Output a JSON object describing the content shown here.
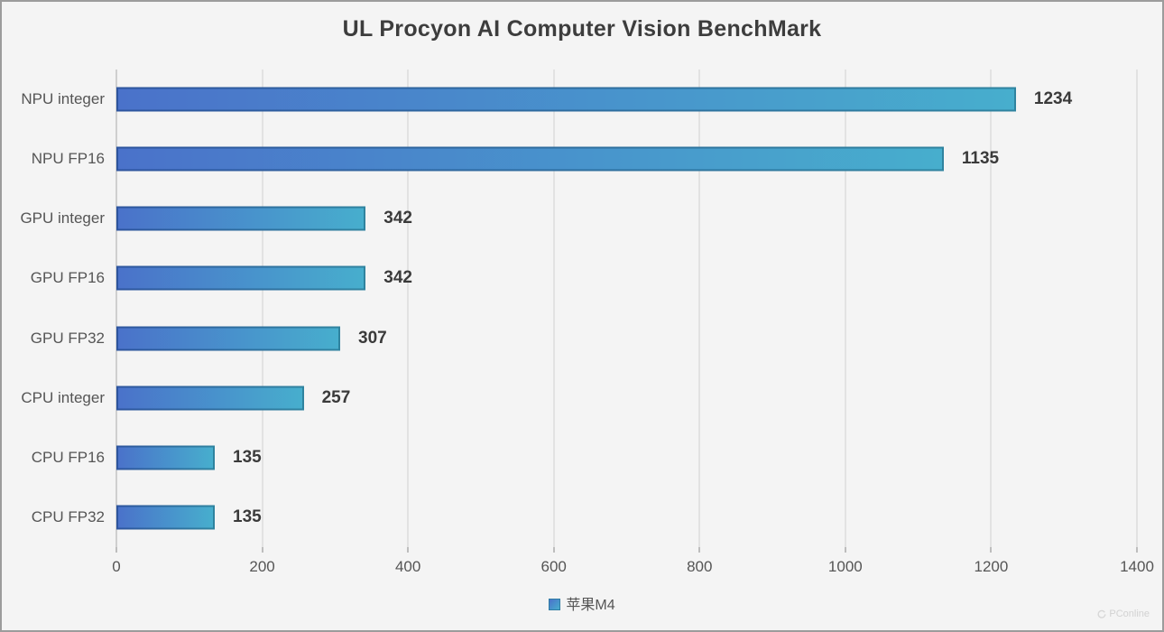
{
  "chart_data": {
    "type": "bar",
    "orientation": "horizontal",
    "title": "UL Procyon AI Computer Vision BenchMark",
    "categories": [
      "NPU integer",
      "NPU FP16",
      "GPU integer",
      "GPU FP16",
      "GPU FP32",
      "CPU integer",
      "CPU FP16",
      "CPU FP32"
    ],
    "series": [
      {
        "name": "苹果M4",
        "values": [
          1234,
          1135,
          342,
          342,
          307,
          257,
          135,
          135
        ]
      }
    ],
    "value_labels": [
      "1234",
      "1135",
      "342",
      "342",
      "307",
      "257",
      "135",
      "135"
    ],
    "xlabel": "",
    "ylabel": "",
    "xlim": [
      0,
      1400
    ],
    "x_ticks": [
      0,
      200,
      400,
      600,
      800,
      1000,
      1200,
      1400
    ],
    "grid": "vertical",
    "legend_position": "bottom-center",
    "colors": {
      "background": "#f4f4f4",
      "gridline": "#e2e2e2",
      "axis_line": "#cfcfcf",
      "bar_fill_start": "#4a72ca",
      "bar_fill_end": "#47aecd",
      "bar_border_start": "#2d549e",
      "bar_border_end": "#2f839f",
      "title_text": "#3d3d3d",
      "label_text": "#555555",
      "value_text": "#3a3a3a"
    }
  },
  "legend": {
    "label": "苹果M4"
  },
  "watermark": {
    "label": "PConline"
  }
}
